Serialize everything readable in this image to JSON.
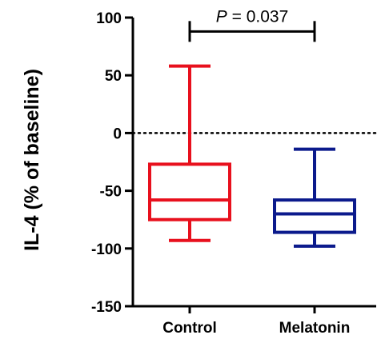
{
  "chart_data": {
    "type": "box",
    "ylabel": "IL-4 (% of baseline)",
    "ylim": [
      -150,
      100
    ],
    "yticks": [
      100,
      50,
      0,
      -50,
      -100,
      -150
    ],
    "categories": [
      "Control",
      "Melatonin"
    ],
    "series": [
      {
        "name": "Control",
        "color": "#e8101d",
        "min": -93,
        "q1": -75,
        "median": -58,
        "q3": -27,
        "max": 58
      },
      {
        "name": "Melatonin",
        "color": "#0b1a8c",
        "min": -98,
        "q1": -86,
        "median": -70,
        "q3": -58,
        "max": -14
      }
    ],
    "reference_line": {
      "y": 0,
      "style": "dotted"
    },
    "annotation": {
      "italic_part": "P",
      "rest": " = 0.037",
      "between": [
        "Control",
        "Melatonin"
      ],
      "y": 88
    },
    "grid": false
  }
}
